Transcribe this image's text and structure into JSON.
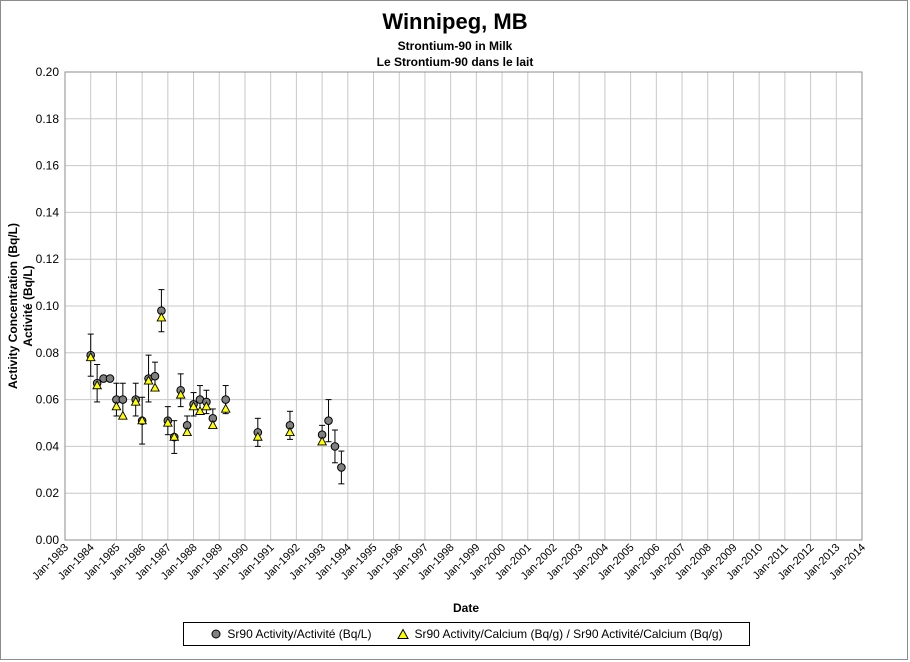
{
  "chart_data": {
    "type": "scatter",
    "title": "Winnipeg, MB",
    "subtitle_lines": [
      "Strontium-90 in Milk",
      "Le Strontium-90 dans le lait"
    ],
    "xlabel": "Date",
    "ylabel_lines": [
      "Activity Concentration (Bq/L)",
      "Activité (Bq/L)"
    ],
    "ylim": [
      0,
      0.2
    ],
    "yticks": [
      "0.00",
      "0.02",
      "0.04",
      "0.06",
      "0.08",
      "0.10",
      "0.12",
      "0.14",
      "0.16",
      "0.18",
      "0.20"
    ],
    "xlim": [
      "1983-01",
      "2014-01"
    ],
    "xticks": [
      "Jan-1983",
      "Jan-1984",
      "Jan-1985",
      "Jan-1986",
      "Jan-1987",
      "Jan-1988",
      "Jan-1989",
      "Jan-1990",
      "Jan-1991",
      "Jan-1992",
      "Jan-1993",
      "Jan-1994",
      "Jan-1995",
      "Jan-1996",
      "Jan-1997",
      "Jan-1998",
      "Jan-1999",
      "Jan-2000",
      "Jan-2001",
      "Jan-2002",
      "Jan-2003",
      "Jan-2004",
      "Jan-2005",
      "Jan-2006",
      "Jan-2007",
      "Jan-2008",
      "Jan-2009",
      "Jan-2010",
      "Jan-2011",
      "Jan-2012",
      "Jan-2013",
      "Jan-2014"
    ],
    "grid": true,
    "legend_position": "bottom",
    "series": [
      {
        "name": "Sr90 Activity/Activité (Bq/L)",
        "marker": "circle",
        "color": "#808080",
        "points": [
          {
            "x": "1984-01",
            "y": 0.079,
            "err": 0.009
          },
          {
            "x": "1984-04",
            "y": 0.067,
            "err": 0.008
          },
          {
            "x": "1984-07",
            "y": 0.069
          },
          {
            "x": "1984-10",
            "y": 0.069
          },
          {
            "x": "1985-01",
            "y": 0.06,
            "err": 0.007
          },
          {
            "x": "1985-04",
            "y": 0.06,
            "err": 0.007
          },
          {
            "x": "1985-10",
            "y": 0.06,
            "err": 0.007
          },
          {
            "x": "1986-01",
            "y": 0.051,
            "err": 0.01
          },
          {
            "x": "1986-04",
            "y": 0.069,
            "err": 0.01
          },
          {
            "x": "1986-07",
            "y": 0.07,
            "err": 0.006
          },
          {
            "x": "1986-10",
            "y": 0.098,
            "err": 0.009
          },
          {
            "x": "1987-01",
            "y": 0.051,
            "err": 0.006
          },
          {
            "x": "1987-04",
            "y": 0.044,
            "err": 0.007
          },
          {
            "x": "1987-07",
            "y": 0.064,
            "err": 0.007
          },
          {
            "x": "1987-10",
            "y": 0.049,
            "err": 0.004
          },
          {
            "x": "1988-01",
            "y": 0.058,
            "err": 0.005
          },
          {
            "x": "1988-04",
            "y": 0.06,
            "err": 0.006
          },
          {
            "x": "1988-07",
            "y": 0.059,
            "err": 0.005
          },
          {
            "x": "1988-10",
            "y": 0.052,
            "err": 0.004
          },
          {
            "x": "1989-04",
            "y": 0.06,
            "err": 0.006
          },
          {
            "x": "1990-07",
            "y": 0.046,
            "err": 0.006
          },
          {
            "x": "1991-10",
            "y": 0.049,
            "err": 0.006
          },
          {
            "x": "1993-01",
            "y": 0.045,
            "err": 0.004
          },
          {
            "x": "1993-04",
            "y": 0.051,
            "err": 0.009
          },
          {
            "x": "1993-07",
            "y": 0.04,
            "err": 0.007
          },
          {
            "x": "1993-10",
            "y": 0.031,
            "err": 0.007
          }
        ]
      },
      {
        "name": "Sr90 Activity/Calcium (Bq/g) / Sr90 Activité/Calcium (Bq/g)",
        "marker": "triangle",
        "color": "#ffff00",
        "points": [
          {
            "x": "1984-01",
            "y": 0.078
          },
          {
            "x": "1984-04",
            "y": 0.066
          },
          {
            "x": "1985-01",
            "y": 0.057
          },
          {
            "x": "1985-04",
            "y": 0.053
          },
          {
            "x": "1985-10",
            "y": 0.059
          },
          {
            "x": "1986-01",
            "y": 0.051
          },
          {
            "x": "1986-04",
            "y": 0.068
          },
          {
            "x": "1986-07",
            "y": 0.065
          },
          {
            "x": "1986-10",
            "y": 0.095
          },
          {
            "x": "1987-01",
            "y": 0.05
          },
          {
            "x": "1987-04",
            "y": 0.044
          },
          {
            "x": "1987-07",
            "y": 0.062
          },
          {
            "x": "1987-10",
            "y": 0.046
          },
          {
            "x": "1988-01",
            "y": 0.057
          },
          {
            "x": "1988-04",
            "y": 0.055
          },
          {
            "x": "1988-07",
            "y": 0.057
          },
          {
            "x": "1988-10",
            "y": 0.049
          },
          {
            "x": "1989-04",
            "y": 0.056
          },
          {
            "x": "1990-07",
            "y": 0.044
          },
          {
            "x": "1991-10",
            "y": 0.046
          },
          {
            "x": "1993-01",
            "y": 0.042
          }
        ]
      }
    ]
  }
}
